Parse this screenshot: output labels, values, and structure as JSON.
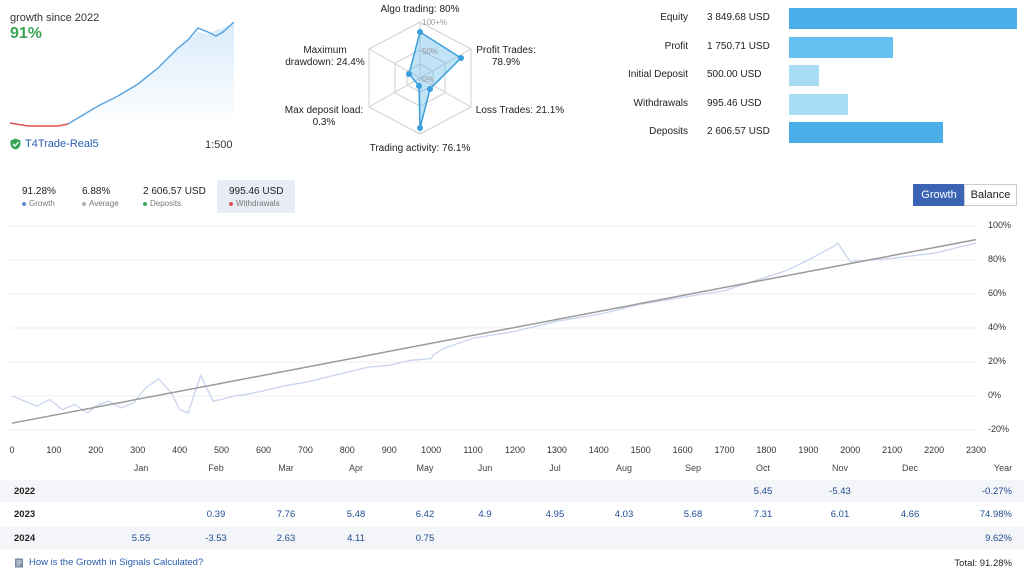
{
  "header": {
    "growth_since": "growth since 2022",
    "growth_value": "91%",
    "account_name": "T4Trade-Real5",
    "leverage": "1:500"
  },
  "radar": {
    "algo_trading": "Algo trading: 80%",
    "profit_trades_line1": "Profit Trades:",
    "profit_trades_line2": "78.9%",
    "loss_trades": "Loss Trades: 21.1%",
    "trading_activity": "Trading activity: 76.1%",
    "max_deposit_load_line1": "Max deposit load:",
    "max_deposit_load_line2": "0.3%",
    "max_drawdown_line1": "Maximum",
    "max_drawdown_line2": "drawdown: 24.4%",
    "ring_100": "100+%",
    "ring_50": "50%",
    "ring_0": "0%"
  },
  "equity_bars": [
    {
      "label": "Equity",
      "value": "3 849.68 USD",
      "amount": 3849.68,
      "color": "#4aaee8"
    },
    {
      "label": "Profit",
      "value": "1 750.71 USD",
      "amount": 1750.71,
      "color": "#67c1f0"
    },
    {
      "label": "Initial Deposit",
      "value": "500.00 USD",
      "amount": 500.0,
      "color": "#a8dcf5"
    },
    {
      "label": "Withdrawals",
      "value": "995.46 USD",
      "amount": 995.46,
      "color": "#a8dcf5"
    },
    {
      "label": "Deposits",
      "value": "2 606.57 USD",
      "amount": 2606.57,
      "color": "#4aaee8"
    }
  ],
  "stats": [
    {
      "value": "91.28%",
      "label": "Growth",
      "dot": "#5b8fd6"
    },
    {
      "value": "6.88%",
      "label": "Average",
      "dot": "#b0b0b0"
    },
    {
      "value": "2 606.57 USD",
      "label": "Deposits",
      "dot": "#3aa655"
    },
    {
      "value": "995.46 USD",
      "label": "Withdrawals",
      "dot": "#e05050"
    }
  ],
  "toggle": {
    "growth": "Growth",
    "balance": "Balance"
  },
  "chart_data": {
    "type": "line",
    "x_ticks": [
      "0",
      "100",
      "200",
      "300",
      "400",
      "500",
      "600",
      "700",
      "800",
      "900",
      "1000",
      "1100",
      "1200",
      "1300",
      "1400",
      "1500",
      "1600",
      "1700",
      "1800",
      "1900",
      "2000",
      "2100",
      "2200",
      "2300"
    ],
    "y_ticks": [
      "100%",
      "80%",
      "60%",
      "40%",
      "20%",
      "0%",
      "-20%"
    ],
    "xlim": [
      0,
      2300
    ],
    "ylim": [
      -20,
      100
    ],
    "series": [
      {
        "x": [
          0,
          30,
          60,
          90,
          120,
          150,
          180,
          200,
          230,
          260,
          290,
          320,
          350,
          380,
          400,
          420,
          450,
          480,
          500,
          530,
          560,
          600,
          650,
          700,
          750,
          800,
          850,
          900,
          950,
          1000,
          1005,
          1030,
          1100,
          1200,
          1300,
          1400,
          1500,
          1600,
          1700,
          1750,
          1800,
          1850,
          1900,
          1930,
          1960,
          1970,
          2000,
          2100,
          2200,
          2300
        ],
        "y": [
          0,
          -3,
          -6,
          -2,
          -8,
          -5,
          -10,
          -6,
          -3,
          -7,
          -4,
          5,
          10,
          2,
          -8,
          -10,
          12,
          -3,
          -2,
          0,
          1,
          3,
          6,
          8,
          11,
          14,
          17,
          18,
          21,
          22,
          24,
          28,
          34,
          38,
          44,
          48,
          54,
          58,
          62,
          66,
          70,
          74,
          80,
          84,
          88,
          90,
          79,
          81,
          84,
          90
        ]
      },
      {
        "x": [
          0,
          2300
        ],
        "y": [
          -16,
          92
        ]
      }
    ]
  },
  "months": [
    "Jan",
    "Feb",
    "Mar",
    "Apr",
    "May",
    "Jun",
    "Jul",
    "Aug",
    "Sep",
    "Oct",
    "Nov",
    "Dec",
    "Year"
  ],
  "years": [
    {
      "year": "2022",
      "values": [
        "",
        "",
        "",
        "",
        "",
        "",
        "",
        "",
        "",
        "5.45",
        "-5.43",
        "",
        ""
      ],
      "total": "-0.27%"
    },
    {
      "year": "2023",
      "values": [
        "",
        "0.39",
        "7.76",
        "5.48",
        "6.42",
        "4.9",
        "4.95",
        "4.03",
        "5.68",
        "7.31",
        "6.01",
        "4.66",
        ""
      ],
      "total": "74.98%"
    },
    {
      "year": "2024",
      "values": [
        "5.55",
        "-3.53",
        "2.63",
        "4.11",
        "0.75",
        "",
        "",
        "",
        "",
        "",
        "",
        "",
        ""
      ],
      "total": "9.62%"
    }
  ],
  "footer": {
    "link": "How is the Growth in Signals Calculated?",
    "total": "Total: 91.28%"
  }
}
